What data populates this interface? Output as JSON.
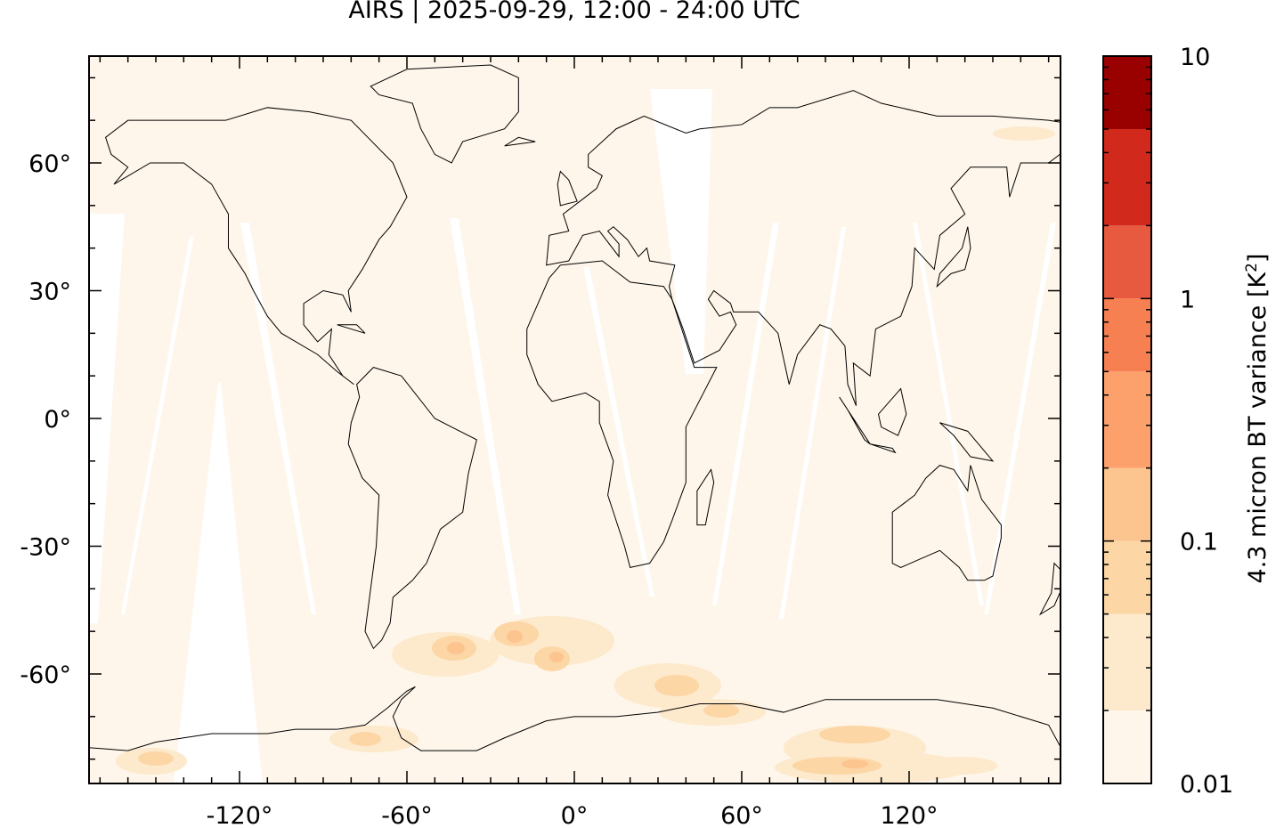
{
  "title": "AIRS | 2025-09-29, 12:00 - 24:00 UTC",
  "map": {
    "projection": "equirectangular",
    "lon_range": [
      -174,
      174
    ],
    "lat_range": [
      -85.5,
      85
    ],
    "background_color": "#fef6ea",
    "coastline_color": "#000000",
    "x_ticks": [
      {
        "value": -120,
        "label": "-120°"
      },
      {
        "value": -60,
        "label": "-60°"
      },
      {
        "value": 0,
        "label": "0°"
      },
      {
        "value": 60,
        "label": "60°"
      },
      {
        "value": 120,
        "label": "120°"
      }
    ],
    "y_ticks": [
      {
        "value": 60,
        "label": "60°"
      },
      {
        "value": 30,
        "label": "30°"
      },
      {
        "value": 0,
        "label": "0°"
      },
      {
        "value": -30,
        "label": "-30°"
      },
      {
        "value": -60,
        "label": "-60°"
      }
    ]
  },
  "colorbar": {
    "label": "4.3 micron BT variance [K",
    "label_sup": "2",
    "label_end": "]",
    "scale": "log",
    "levels": [
      0.01,
      0.02,
      0.05,
      0.1,
      0.2,
      0.5,
      1,
      2,
      5,
      10
    ],
    "colors": [
      "#fef6ea",
      "#fde9cc",
      "#fcd6a5",
      "#fcc48f",
      "#fca06c",
      "#f78052",
      "#e85a40",
      "#d12a1c",
      "#990000"
    ],
    "tick_labels": [
      {
        "value": 10,
        "label": "10"
      },
      {
        "value": 1,
        "label": "1"
      },
      {
        "value": 0.1,
        "label": "0.1"
      },
      {
        "value": 0.01,
        "label": "0.01"
      }
    ]
  }
}
